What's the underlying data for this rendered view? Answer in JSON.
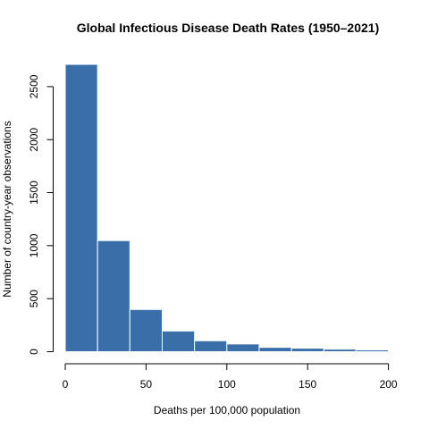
{
  "chart_data": {
    "type": "bar",
    "subtype": "histogram",
    "title": "Global Infectious Disease Death Rates (1950–2021)",
    "xlabel": "Deaths per 100,000 population",
    "ylabel": "Number of country-year observations",
    "bin_edges": [
      0,
      20,
      40,
      60,
      80,
      100,
      120,
      140,
      160,
      180,
      200,
      210
    ],
    "values": [
      2710,
      1048,
      398,
      195,
      103,
      73,
      41,
      33,
      24,
      17,
      5
    ],
    "xlim": [
      0,
      210
    ],
    "ylim": [
      0,
      2710
    ],
    "x_ticks": [
      0,
      50,
      100,
      150,
      200
    ],
    "x_tick_labels": [
      "0",
      "50",
      "100",
      "150",
      "200"
    ],
    "y_ticks": [
      0,
      500,
      1000,
      1500,
      2000,
      2500
    ],
    "y_tick_labels": [
      "0",
      "500",
      "1000",
      "1500",
      "2000",
      "2500"
    ],
    "grid": false,
    "legend": "none",
    "bar_color": "#3a6ea8",
    "bar_edge_color": "#ffffff"
  }
}
